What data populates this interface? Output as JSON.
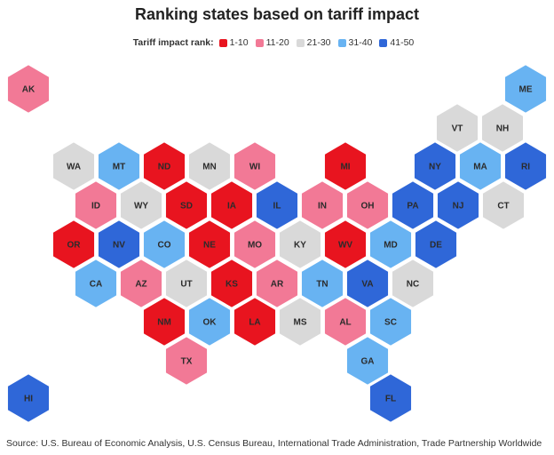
{
  "title": "Ranking states based on tariff impact",
  "legend": {
    "title": "Tariff impact rank:",
    "items": [
      {
        "label": "1-10",
        "color": "#e8141f"
      },
      {
        "label": "11-20",
        "color": "#f27996"
      },
      {
        "label": "21-30",
        "color": "#d9d9d9"
      },
      {
        "label": "31-40",
        "color": "#68b3f2"
      },
      {
        "label": "41-50",
        "color": "#2f67d8"
      }
    ]
  },
  "states": [
    {
      "abbr": "AK",
      "bucket": 1
    },
    {
      "abbr": "ME",
      "bucket": 3
    },
    {
      "abbr": "VT",
      "bucket": 2
    },
    {
      "abbr": "NH",
      "bucket": 2
    },
    {
      "abbr": "WA",
      "bucket": 2
    },
    {
      "abbr": "MT",
      "bucket": 3
    },
    {
      "abbr": "ND",
      "bucket": 0
    },
    {
      "abbr": "MN",
      "bucket": 2
    },
    {
      "abbr": "WI",
      "bucket": 1
    },
    {
      "abbr": "MI",
      "bucket": 0
    },
    {
      "abbr": "NY",
      "bucket": 4
    },
    {
      "abbr": "MA",
      "bucket": 3
    },
    {
      "abbr": "RI",
      "bucket": 4
    },
    {
      "abbr": "ID",
      "bucket": 1
    },
    {
      "abbr": "WY",
      "bucket": 2
    },
    {
      "abbr": "SD",
      "bucket": 0
    },
    {
      "abbr": "IA",
      "bucket": 0
    },
    {
      "abbr": "IL",
      "bucket": 4
    },
    {
      "abbr": "IN",
      "bucket": 1
    },
    {
      "abbr": "OH",
      "bucket": 1
    },
    {
      "abbr": "PA",
      "bucket": 4
    },
    {
      "abbr": "NJ",
      "bucket": 4
    },
    {
      "abbr": "CT",
      "bucket": 2
    },
    {
      "abbr": "OR",
      "bucket": 0
    },
    {
      "abbr": "NV",
      "bucket": 4
    },
    {
      "abbr": "CO",
      "bucket": 3
    },
    {
      "abbr": "NE",
      "bucket": 0
    },
    {
      "abbr": "MO",
      "bucket": 1
    },
    {
      "abbr": "KY",
      "bucket": 2
    },
    {
      "abbr": "WV",
      "bucket": 0
    },
    {
      "abbr": "MD",
      "bucket": 3
    },
    {
      "abbr": "DE",
      "bucket": 4
    },
    {
      "abbr": "CA",
      "bucket": 3
    },
    {
      "abbr": "AZ",
      "bucket": 1
    },
    {
      "abbr": "UT",
      "bucket": 2
    },
    {
      "abbr": "KS",
      "bucket": 0
    },
    {
      "abbr": "AR",
      "bucket": 1
    },
    {
      "abbr": "TN",
      "bucket": 3
    },
    {
      "abbr": "VA",
      "bucket": 4
    },
    {
      "abbr": "NC",
      "bucket": 2
    },
    {
      "abbr": "NM",
      "bucket": 0
    },
    {
      "abbr": "OK",
      "bucket": 3
    },
    {
      "abbr": "LA",
      "bucket": 0
    },
    {
      "abbr": "MS",
      "bucket": 2
    },
    {
      "abbr": "AL",
      "bucket": 1
    },
    {
      "abbr": "SC",
      "bucket": 3
    },
    {
      "abbr": "TX",
      "bucket": 1
    },
    {
      "abbr": "GA",
      "bucket": 3
    },
    {
      "abbr": "HI",
      "bucket": 4
    },
    {
      "abbr": "FL",
      "bucket": 4
    }
  ],
  "source": "Source: U.S. Bureau of Economic Analysis, U.S. Census Bureau, International Trade Administration, Trade Partnership Worldwide"
}
